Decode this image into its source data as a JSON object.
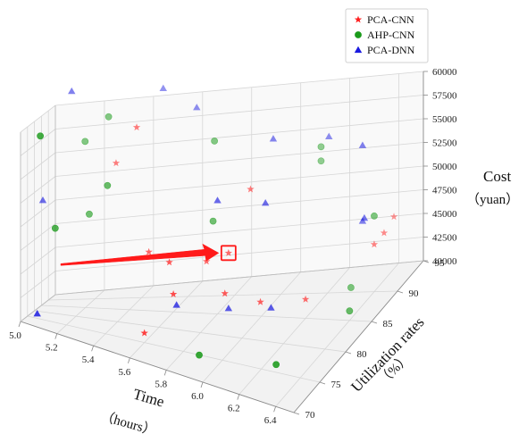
{
  "chart_data": {
    "type": "scatter",
    "projection": "3d",
    "xlabel": "Time",
    "xlabel_unit": "（hours）",
    "ylabel": "Utilization rates",
    "ylabel_unit": "（%）",
    "zlabel": "Cost",
    "zlabel_unit": "（yuan）",
    "xlim": [
      5.0,
      6.5
    ],
    "ylim": [
      70,
      95
    ],
    "zlim": [
      40000,
      60000
    ],
    "x_ticks": [
      "5.0",
      "5.2",
      "5.4",
      "5.6",
      "5.8",
      "6.0",
      "6.2",
      "6.4"
    ],
    "y_ticks": [
      "70",
      "75",
      "80",
      "85",
      "90",
      "95"
    ],
    "z_ticks": [
      "40000",
      "42500",
      "45000",
      "47500",
      "50000",
      "52500",
      "55000",
      "57500",
      "60000"
    ],
    "grid": true,
    "legend_position": "top-right",
    "highlight": {
      "series": "PCA-CNN",
      "x": 5.85,
      "y": 85,
      "z": 46500,
      "marker": "red box with arrow"
    },
    "series": [
      {
        "name": "PCA-CNN",
        "color": "#ff2020",
        "marker": "star",
        "points": [
          {
            "x": 5.5,
            "y": 84,
            "z": 46500
          },
          {
            "x": 5.4,
            "y": 88,
            "z": 58500
          },
          {
            "x": 5.3,
            "y": 89,
            "z": 54500
          },
          {
            "x": 5.9,
            "y": 88,
            "z": 52000
          },
          {
            "x": 5.65,
            "y": 80,
            "z": 47000
          },
          {
            "x": 5.75,
            "y": 85,
            "z": 45500
          },
          {
            "x": 5.85,
            "y": 85,
            "z": 46500
          },
          {
            "x": 5.9,
            "y": 81,
            "z": 44000
          },
          {
            "x": 6.05,
            "y": 82,
            "z": 43000
          },
          {
            "x": 5.6,
            "y": 75,
            "z": 41000
          },
          {
            "x": 6.4,
            "y": 90,
            "z": 45000
          },
          {
            "x": 6.4,
            "y": 94,
            "z": 45500
          },
          {
            "x": 6.4,
            "y": 92,
            "z": 45000
          },
          {
            "x": 6.2,
            "y": 85,
            "z": 42000
          },
          {
            "x": 5.7,
            "y": 78,
            "z": 44500
          }
        ]
      },
      {
        "name": "AHP-CNN",
        "color": "#1a9a1a",
        "marker": "circle",
        "points": [
          {
            "x": 5.05,
            "y": 77,
            "z": 59000
          },
          {
            "x": 5.1,
            "y": 80,
            "z": 49000
          },
          {
            "x": 5.2,
            "y": 87,
            "z": 49500
          },
          {
            "x": 5.15,
            "y": 91,
            "z": 56500
          },
          {
            "x": 5.3,
            "y": 85,
            "z": 53000
          },
          {
            "x": 5.25,
            "y": 91,
            "z": 59000
          },
          {
            "x": 5.7,
            "y": 91,
            "z": 56000
          },
          {
            "x": 6.1,
            "y": 94,
            "z": 52000
          },
          {
            "x": 5.9,
            "y": 74,
            "z": 40500
          },
          {
            "x": 6.3,
            "y": 74,
            "z": 41500
          },
          {
            "x": 6.4,
            "y": 85,
            "z": 41000
          },
          {
            "x": 6.3,
            "y": 90,
            "z": 40500
          },
          {
            "x": 6.1,
            "y": 94,
            "z": 53500
          },
          {
            "x": 5.75,
            "y": 87,
            "z": 49000
          },
          {
            "x": 6.4,
            "y": 90,
            "z": 48000
          }
        ]
      },
      {
        "name": "PCA-DNN",
        "color": "#1a1ae0",
        "marker": "triangle",
        "points": [
          {
            "x": 5.0,
            "y": 86,
            "z": 51000
          },
          {
            "x": 5.05,
            "y": 75,
            "z": 40500
          },
          {
            "x": 5.1,
            "y": 90,
            "z": 62000
          },
          {
            "x": 5.6,
            "y": 93,
            "z": 59000
          },
          {
            "x": 5.95,
            "y": 91,
            "z": 56000
          },
          {
            "x": 6.15,
            "y": 93,
            "z": 55000
          },
          {
            "x": 5.8,
            "y": 85,
            "z": 52000
          },
          {
            "x": 6.0,
            "y": 86,
            "z": 51500
          },
          {
            "x": 6.35,
            "y": 90,
            "z": 55500
          },
          {
            "x": 6.4,
            "y": 88,
            "z": 49000
          },
          {
            "x": 5.9,
            "y": 82,
            "z": 42000
          },
          {
            "x": 6.1,
            "y": 82,
            "z": 42500
          },
          {
            "x": 6.35,
            "y": 90,
            "z": 47500
          },
          {
            "x": 5.45,
            "y": 94,
            "z": 61000
          },
          {
            "x": 5.7,
            "y": 79,
            "z": 43000
          }
        ]
      }
    ]
  }
}
